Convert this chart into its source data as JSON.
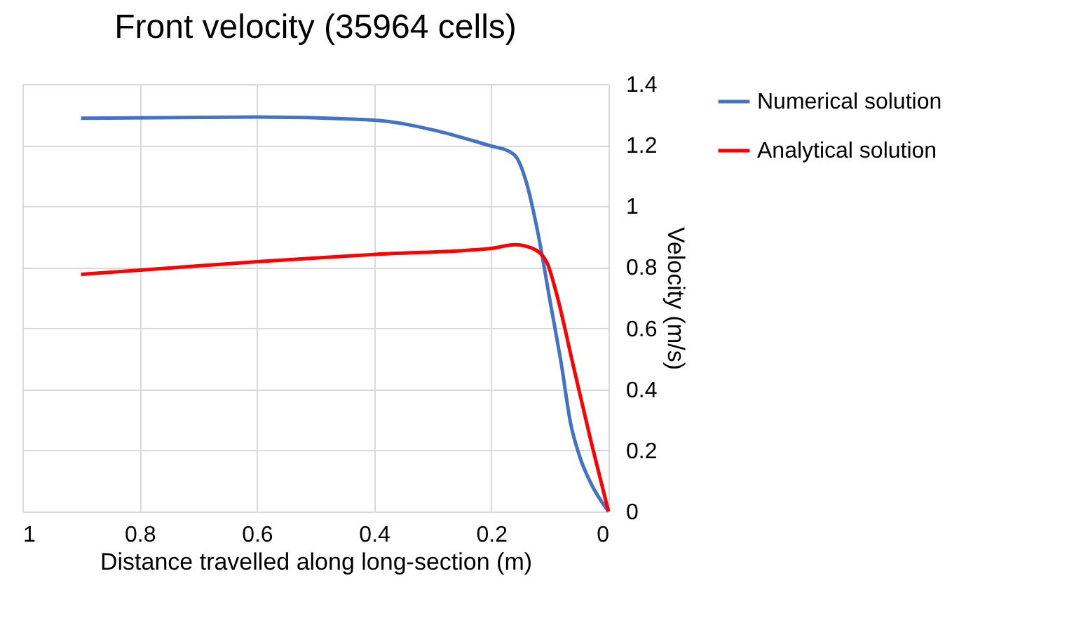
{
  "chart_data": {
    "type": "line",
    "title": "Front velocity (35964 cells)",
    "xlabel": "Distance travelled along long-section (m)",
    "ylabel": "Velocity (m/s)",
    "xlim": [
      1,
      0
    ],
    "xticks": [
      1,
      0.8,
      0.6,
      0.4,
      0.2,
      0
    ],
    "ylim": [
      0,
      1.4
    ],
    "yticks": [
      0,
      0.2,
      0.4,
      0.6,
      0.8,
      1,
      1.2,
      1.4
    ],
    "grid": true,
    "legend": "right",
    "marker": "none",
    "line_style": "solid",
    "series": [
      {
        "name": "Numerical solution",
        "color": "#4472c4",
        "x": [
          0.9,
          0.6,
          0.4,
          0.3,
          0.2,
          0.17,
          0.155,
          0.14,
          0.12,
          0.1,
          0.08,
          0.065,
          0.05,
          0.03,
          0
        ],
        "values": [
          1.288,
          1.292,
          1.282,
          1.25,
          1.197,
          1.18,
          1.154,
          1.077,
          0.908,
          0.692,
          0.477,
          0.292,
          0.185,
          0.092,
          0
        ]
      },
      {
        "name": "Analytical solution",
        "color": "#ff0000",
        "x": [
          0.9,
          0.6,
          0.4,
          0.2,
          0.16,
          0.13,
          0.105,
          0.09,
          0.06,
          0.03,
          0
        ],
        "values": [
          0.777,
          0.818,
          0.842,
          0.862,
          0.874,
          0.862,
          0.815,
          0.723,
          0.477,
          0.231,
          0
        ]
      }
    ]
  }
}
